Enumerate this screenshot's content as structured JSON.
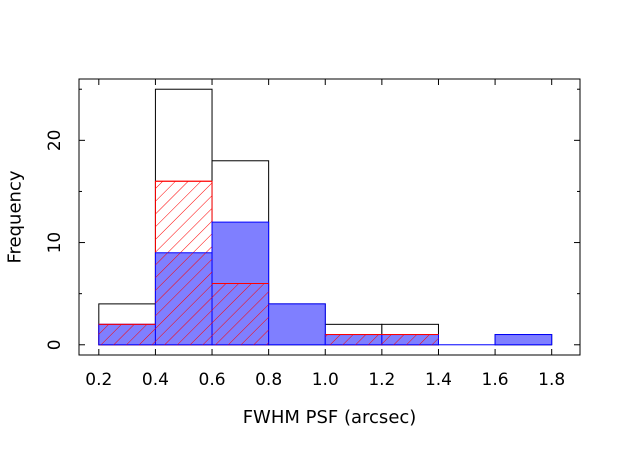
{
  "chart_data": {
    "type": "bar",
    "xlabel": "FWHM PSF (arcsec)",
    "ylabel": "Frequency",
    "xlim": [
      0.13,
      1.9
    ],
    "ylim": [
      -1,
      26
    ],
    "x_ticks": [
      0.2,
      0.4,
      0.6,
      0.8,
      1.0,
      1.2,
      1.4,
      1.6,
      1.8
    ],
    "x_tick_labels": [
      "0.2",
      "0.4",
      "0.6",
      "0.8",
      "1.0",
      "1.2",
      "1.4",
      "1.6",
      "1.8"
    ],
    "y_ticks": [
      0,
      10,
      20
    ],
    "y_tick_labels": [
      "0",
      "10",
      "20"
    ],
    "bin_edges": [
      0.2,
      0.4,
      0.6,
      0.8,
      1.0,
      1.2,
      1.4,
      1.6,
      1.8
    ],
    "series": [
      {
        "style": "outline",
        "color": "#000000",
        "values": [
          4,
          25,
          18,
          4,
          2,
          2,
          0,
          1
        ]
      },
      {
        "style": "red-hatched",
        "color": "#ff0000",
        "values": [
          2,
          16,
          6,
          0,
          1,
          1,
          0,
          0
        ]
      },
      {
        "style": "blue-filled",
        "color": "#0000ff",
        "fill": "#7f7fff",
        "values": [
          2,
          9,
          12,
          4,
          1,
          1,
          0,
          1
        ]
      }
    ],
    "grid": false
  }
}
